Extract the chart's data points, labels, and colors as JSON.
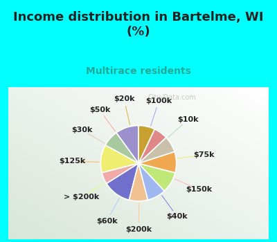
{
  "title": "Income distribution in Bartelme, WI\n(%)",
  "subtitle": "Multirace residents",
  "bg_cyan": "#00ffff",
  "labels": [
    "$100k",
    "$10k",
    "$75k",
    "$150k",
    "$40k",
    "$200k",
    "$60k",
    "> $200k",
    "$125k",
    "$30k",
    "$50k",
    "$20k"
  ],
  "values": [
    10,
    7,
    12,
    5,
    12,
    8,
    8,
    9,
    9,
    7,
    6,
    7
  ],
  "colors": [
    "#9b8fcc",
    "#a8c8a0",
    "#f0ee70",
    "#f0aaaa",
    "#7070cc",
    "#f0c090",
    "#a0b8f0",
    "#c0e878",
    "#f0a850",
    "#c8c0a8",
    "#e08888",
    "#c8a030"
  ],
  "startangle": 90,
  "line_colors": [
    "#aaaaee",
    "#bbddbb",
    "#eeee88",
    "#ffbbbb",
    "#8888dd",
    "#ffcc99",
    "#bbccff",
    "#ddff88",
    "#ffbb66",
    "#ddccbb",
    "#ffaaaa",
    "#ddbb44"
  ],
  "watermark": "City-Data.com",
  "title_fontsize": 13,
  "subtitle_fontsize": 10,
  "label_fontsize": 8
}
